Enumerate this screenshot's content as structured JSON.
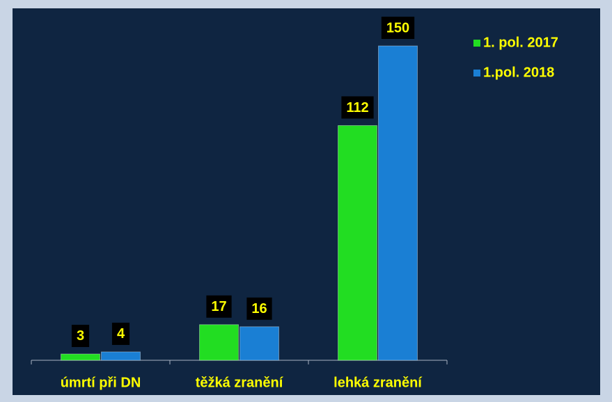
{
  "chart_data": {
    "type": "bar",
    "categories": [
      "úmrtí při DN",
      "těžká zranění",
      "lehká zranění"
    ],
    "series": [
      {
        "name": "1. pol. 2017",
        "color": "#22dd22",
        "values": [
          3,
          17,
          112
        ]
      },
      {
        "name": "1.pol. 2018",
        "color": "#1a7fd4",
        "values": [
          4,
          16,
          150
        ]
      }
    ],
    "ylim": [
      0,
      150
    ]
  }
}
